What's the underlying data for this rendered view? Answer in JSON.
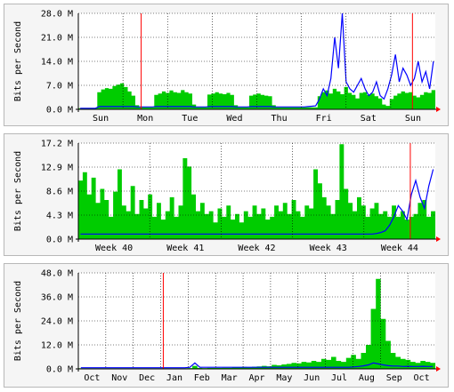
{
  "colors": {
    "in_fill": "#00cc00",
    "out_line": "#0000ff",
    "marker": "#ff0000",
    "grid": "#000000",
    "plot_bg": "#ffffff",
    "panel_bg": "#f5f5f5"
  },
  "chart_data": [
    {
      "type": "area",
      "ylabel": "Bits per Second",
      "yticks": [
        "0.0 M",
        "7.0 M",
        "14.0 M",
        "21.0 M",
        "28.0 M"
      ],
      "ylim": [
        0,
        28
      ],
      "xticks": [
        "Sun",
        "Mon",
        "Tue",
        "Wed",
        "Thu",
        "Fri",
        "Sat",
        "Sun"
      ],
      "series": [
        {
          "values": [
            0.3,
            0.3,
            0.3,
            0.3,
            0.4,
            5.0,
            5.8,
            6.2,
            6.0,
            6.8,
            7.2,
            7.6,
            6.5,
            5.2,
            4.0,
            1.2,
            0.6,
            0.6,
            0.6,
            0.6,
            4.2,
            4.6,
            5.2,
            4.8,
            5.5,
            5.0,
            4.8,
            5.6,
            5.0,
            4.6,
            1.4,
            0.6,
            0.6,
            0.6,
            4.3,
            4.6,
            5.0,
            4.6,
            4.4,
            4.8,
            4.2,
            1.2,
            0.6,
            0.6,
            0.6,
            4.0,
            4.3,
            4.6,
            4.2,
            4.0,
            3.8,
            1.2,
            0.6,
            0.6,
            0.6,
            0.6,
            0.6,
            0.6,
            0.6,
            0.6,
            0.6,
            0.6,
            0.6,
            3.8,
            5.0,
            5.5,
            4.6,
            6.0,
            5.2,
            4.4,
            6.5,
            4.8,
            4.2,
            3.2,
            4.8,
            5.0,
            4.2,
            4.6,
            3.8,
            3.2,
            1.4,
            1.0,
            3.0,
            4.0,
            4.6,
            5.2,
            4.8,
            5.0,
            4.0,
            3.5,
            4.2,
            5.0,
            4.8,
            5.6
          ]
        },
        {
          "values": [
            0.3,
            0.3,
            0.3,
            0.3,
            0.3,
            0.8,
            0.8,
            0.8,
            0.8,
            0.8,
            0.8,
            0.8,
            0.8,
            0.8,
            0.8,
            0.7,
            0.7,
            0.7,
            0.7,
            0.7,
            0.8,
            0.8,
            0.8,
            0.8,
            0.8,
            0.8,
            0.8,
            0.8,
            0.8,
            0.8,
            0.7,
            0.7,
            0.7,
            0.7,
            0.8,
            0.8,
            0.8,
            0.8,
            0.8,
            0.8,
            0.8,
            0.7,
            0.7,
            0.7,
            0.7,
            0.8,
            0.8,
            0.8,
            0.8,
            0.8,
            0.8,
            0.7,
            0.7,
            0.7,
            0.7,
            0.7,
            0.7,
            0.7,
            0.7,
            0.7,
            0.8,
            0.9,
            1.0,
            3.0,
            6.0,
            4.0,
            9.0,
            21.0,
            12.0,
            28.0,
            8.0,
            6.0,
            5.0,
            7.0,
            9.0,
            6.0,
            4.0,
            5.0,
            8.0,
            4.0,
            3.0,
            6.0,
            10.0,
            16.0,
            8.0,
            12.0,
            10.0,
            7.0,
            9.0,
            14.0,
            8.0,
            11.0,
            6.0,
            14.0
          ]
        }
      ],
      "markers": [
        0.176,
        0.936
      ]
    },
    {
      "type": "area",
      "ylabel": "Bits per Second",
      "yticks": [
        "0.0 M",
        "4.3 M",
        "8.6 M",
        "12.9 M",
        "17.2 M"
      ],
      "ylim": [
        0,
        17.2
      ],
      "xticks": [
        "Week 40",
        "Week 41",
        "Week 42",
        "Week 43",
        "Week 44"
      ],
      "series": [
        {
          "values": [
            10.5,
            12.0,
            8.0,
            11.0,
            6.5,
            9.0,
            7.0,
            4.0,
            8.5,
            12.5,
            6.0,
            5.0,
            9.5,
            4.5,
            7.0,
            5.5,
            8.0,
            4.0,
            6.5,
            3.5,
            5.0,
            7.5,
            4.0,
            6.0,
            14.5,
            13.0,
            8.0,
            5.0,
            6.5,
            4.5,
            5.0,
            3.0,
            5.5,
            4.0,
            6.0,
            3.5,
            4.5,
            3.0,
            5.0,
            4.0,
            6.0,
            4.5,
            5.5,
            3.5,
            4.0,
            6.0,
            5.0,
            6.5,
            4.5,
            7.0,
            5.0,
            4.0,
            6.0,
            5.5,
            12.5,
            10.0,
            7.5,
            6.0,
            4.5,
            7.0,
            17.0,
            9.0,
            6.5,
            5.0,
            7.5,
            6.0,
            4.0,
            5.5,
            6.5,
            4.5,
            5.0,
            4.0,
            6.0,
            4.0,
            5.0,
            3.5,
            4.0,
            4.5,
            6.5,
            7.0,
            4.0,
            5.0
          ]
        },
        {
          "values": [
            0.9,
            0.9,
            0.9,
            0.9,
            0.9,
            0.9,
            0.9,
            0.9,
            0.9,
            0.9,
            0.9,
            0.9,
            0.9,
            0.9,
            0.9,
            0.9,
            0.9,
            0.9,
            0.9,
            0.9,
            0.9,
            0.9,
            0.9,
            0.9,
            0.9,
            0.9,
            0.9,
            0.9,
            0.9,
            0.9,
            0.9,
            0.9,
            0.9,
            0.9,
            0.9,
            0.9,
            0.9,
            0.9,
            0.9,
            0.9,
            0.9,
            0.9,
            0.9,
            0.9,
            0.9,
            0.9,
            0.9,
            0.9,
            0.9,
            0.9,
            0.9,
            0.9,
            0.9,
            0.9,
            0.9,
            0.9,
            0.9,
            0.9,
            0.9,
            0.9,
            0.9,
            0.9,
            0.9,
            0.9,
            0.9,
            0.9,
            0.9,
            0.9,
            1.0,
            1.2,
            1.5,
            2.5,
            4.0,
            6.0,
            5.0,
            3.5,
            8.0,
            10.5,
            7.5,
            5.5,
            9.5,
            12.5
          ]
        }
      ],
      "markers": [
        0.93
      ]
    },
    {
      "type": "area",
      "ylabel": "Bits per Second",
      "yticks": [
        "0.0 M",
        "12.0 M",
        "24.0 M",
        "36.0 M",
        "48.0 M"
      ],
      "ylim": [
        0,
        48
      ],
      "xticks": [
        "Oct",
        "Nov",
        "Dec",
        "Jan",
        "Feb",
        "Mar",
        "Apr",
        "May",
        "Jun",
        "Jul",
        "Aug",
        "Sep",
        "Oct"
      ],
      "series": [
        {
          "values": [
            0.3,
            0.3,
            0.3,
            0.3,
            0.3,
            0.3,
            0.3,
            0.3,
            0.3,
            0.3,
            0.3,
            0.3,
            0.3,
            0.3,
            0.3,
            0.3,
            0.3,
            0.3,
            0.3,
            0.3,
            0.3,
            0.3,
            0.4,
            1.5,
            0.5,
            0.4,
            0.5,
            0.5,
            0.5,
            0.6,
            0.6,
            0.7,
            0.8,
            1.0,
            0.9,
            1.1,
            1.2,
            1.5,
            1.3,
            2.0,
            1.8,
            2.2,
            2.5,
            3.0,
            2.8,
            3.5,
            3.2,
            4.0,
            3.5,
            5.0,
            4.5,
            6.0,
            4.0,
            3.5,
            5.5,
            7.0,
            5.0,
            8.0,
            12.0,
            30.0,
            45.0,
            25.0,
            14.0,
            8.0,
            6.0,
            5.0,
            4.5,
            3.5,
            3.0,
            4.0,
            3.5,
            3.0
          ]
        },
        {
          "values": [
            0.6,
            0.6,
            0.6,
            0.6,
            0.6,
            0.6,
            0.6,
            0.6,
            0.6,
            0.6,
            0.6,
            0.6,
            0.6,
            0.6,
            0.6,
            0.6,
            0.6,
            0.6,
            0.6,
            0.6,
            0.6,
            0.6,
            0.8,
            3.0,
            0.8,
            0.8,
            0.8,
            0.8,
            0.8,
            0.8,
            0.8,
            0.8,
            0.8,
            0.8,
            0.8,
            0.8,
            0.8,
            0.8,
            0.8,
            0.8,
            0.8,
            0.8,
            0.8,
            0.8,
            0.8,
            0.8,
            0.8,
            0.8,
            0.8,
            0.8,
            0.8,
            0.8,
            0.8,
            0.8,
            0.8,
            1.0,
            1.2,
            1.5,
            2.0,
            3.0,
            2.5,
            2.0,
            1.6,
            1.4,
            1.4,
            1.2,
            1.3,
            1.2,
            1.2,
            1.3,
            1.2,
            1.2
          ]
        }
      ],
      "markers": [
        0.238
      ]
    }
  ]
}
